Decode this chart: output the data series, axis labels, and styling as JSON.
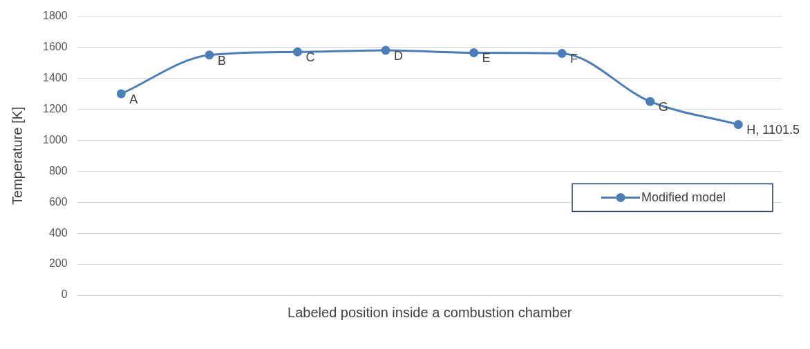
{
  "chart_data": {
    "type": "line",
    "xlabel": "Labeled position inside a combustion chamber",
    "ylabel": "Temperature [K]",
    "categories": [
      "A",
      "B",
      "C",
      "D",
      "E",
      "F",
      "G",
      "H, 1101.5"
    ],
    "series": [
      {
        "name": "Modified model",
        "color": "#4a7ebb",
        "values": [
          1300,
          1550,
          1570,
          1580,
          1565,
          1560,
          1250,
          1101.5
        ]
      }
    ],
    "ylim": [
      0,
      1800
    ],
    "yticks": [
      0,
      200,
      400,
      600,
      800,
      1000,
      1200,
      1400,
      1600,
      1800
    ],
    "grid": "y",
    "legend": "right",
    "marker": "circle",
    "line_style": "solid",
    "tick_labels": "y"
  }
}
